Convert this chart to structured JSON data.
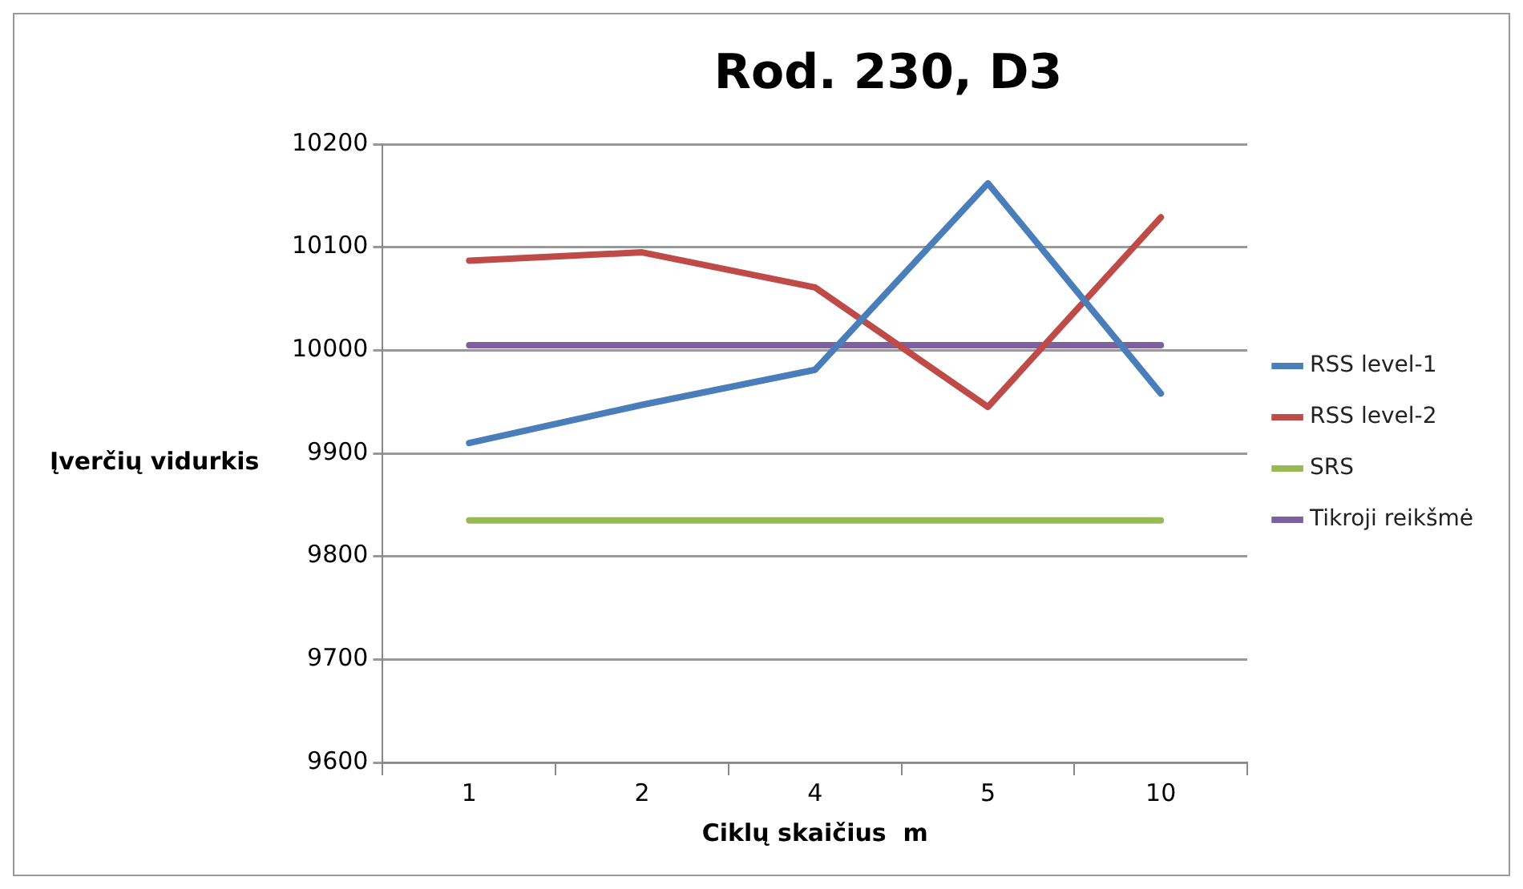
{
  "chart_data": {
    "type": "line",
    "title": "Rod. 230, D3",
    "xlabel": "Ciklų skaičius  m",
    "ylabel": "Įverčių vidurkis",
    "categories": [
      "1",
      "2",
      "4",
      "5",
      "10"
    ],
    "series": [
      {
        "name": "RSS level-1",
        "color": "#4a7ebb",
        "values": [
          9910,
          9947,
          9981,
          10162,
          9958
        ]
      },
      {
        "name": "RSS level-2",
        "color": "#be4b48",
        "values": [
          10087,
          10095,
          10061,
          9945,
          10129
        ]
      },
      {
        "name": "SRS",
        "color": "#98b954",
        "values": [
          9835,
          9835,
          9835,
          9835,
          9835
        ]
      },
      {
        "name": "Tikroji reikšmė",
        "color": "#7d60a0",
        "values": [
          10005,
          10005,
          10005,
          10005,
          10005
        ]
      }
    ],
    "ylim": [
      9600,
      10200
    ],
    "yticks": [
      9600,
      9700,
      9800,
      9900,
      10000,
      10100,
      10200
    ],
    "grid": "y",
    "legend": "right",
    "marker": "none",
    "line_style": "solid"
  }
}
